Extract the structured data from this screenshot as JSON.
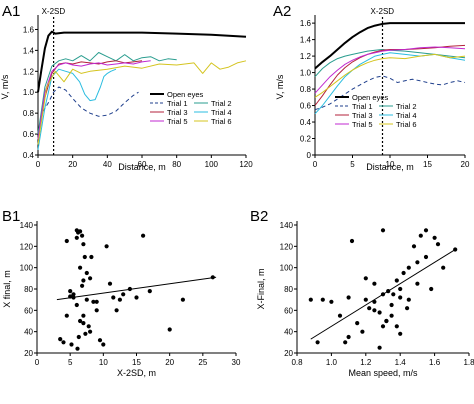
{
  "panels": [
    "A1",
    "A2",
    "B1",
    "B2"
  ],
  "chart_data": [
    {
      "panel": "A1",
      "type": "line",
      "xlabel": "Distance, m",
      "ylabel": "V, m/s",
      "xlim": [
        0,
        120
      ],
      "ylim": [
        0.4,
        1.7
      ],
      "xticks": [
        0,
        20,
        40,
        60,
        80,
        100,
        120
      ],
      "yticks": [
        0.4,
        0.6,
        0.8,
        1.0,
        1.2,
        1.4,
        1.6
      ],
      "xtick_labels": [
        "0",
        "20",
        "40",
        "60",
        "80",
        "100",
        "120"
      ],
      "ytick_labels": [
        "0.4",
        "0.6",
        "0.8",
        "1.0",
        "1.2",
        "1.4",
        "1.6"
      ],
      "annotation": {
        "text": "X-2SD",
        "x": 9
      },
      "legend": {
        "position": "bottom-right",
        "rows": [
          [
            "Open eyes"
          ],
          [
            "Trial 1",
            "Trial 2"
          ],
          [
            "Trial 3",
            "Trial 4"
          ],
          [
            "Trial 5",
            "Trial 6"
          ]
        ]
      },
      "series": [
        {
          "name": "Open eyes",
          "color": "#000000",
          "style": "solid",
          "width": 2,
          "x": [
            0,
            2,
            4,
            6,
            8,
            10,
            15,
            20,
            40,
            60,
            80,
            100,
            110,
            120
          ],
          "y": [
            1.0,
            1.22,
            1.42,
            1.54,
            1.58,
            1.56,
            1.57,
            1.57,
            1.57,
            1.57,
            1.56,
            1.55,
            1.54,
            1.53
          ]
        },
        {
          "name": "Trial 1",
          "color": "#1f3f8c",
          "style": "dashed",
          "width": 1,
          "x": [
            0,
            3,
            6,
            9,
            12,
            16,
            20,
            25,
            30,
            35,
            40,
            45,
            50,
            55,
            58
          ],
          "y": [
            0.62,
            0.82,
            0.9,
            1.0,
            1.05,
            1.02,
            0.94,
            0.85,
            0.8,
            0.77,
            0.78,
            0.82,
            0.9,
            0.97,
            1.0
          ]
        },
        {
          "name": "Trial 2",
          "color": "#2a9d8f",
          "style": "solid",
          "width": 1,
          "x": [
            0,
            4,
            8,
            12,
            16,
            20,
            25,
            30,
            35,
            40,
            45,
            50,
            55,
            60,
            65,
            70,
            75,
            80
          ],
          "y": [
            0.6,
            1.05,
            1.25,
            1.3,
            1.32,
            1.3,
            1.35,
            1.3,
            1.38,
            1.34,
            1.3,
            1.36,
            1.3,
            1.33,
            1.34,
            1.3,
            1.32,
            1.31
          ]
        },
        {
          "name": "Trial 3",
          "color": "#b3223b",
          "style": "solid",
          "width": 1,
          "x": [
            0,
            4,
            8,
            12,
            16,
            20,
            25,
            30,
            35,
            40,
            45,
            50,
            55,
            60
          ],
          "y": [
            0.55,
            0.95,
            1.18,
            1.27,
            1.28,
            1.27,
            1.29,
            1.28,
            1.27,
            1.29,
            1.3,
            1.28,
            1.29,
            1.3
          ]
        },
        {
          "name": "Trial 4",
          "color": "#2bbde0",
          "style": "solid",
          "width": 1,
          "x": [
            0,
            4,
            8,
            12,
            16,
            20,
            24,
            27,
            30,
            33,
            36,
            38,
            40,
            42,
            45
          ],
          "y": [
            0.45,
            0.85,
            1.15,
            1.22,
            1.2,
            1.18,
            1.1,
            0.98,
            0.92,
            0.93,
            1.05,
            1.15,
            1.18,
            1.2,
            1.22
          ]
        },
        {
          "name": "Trial 5",
          "color": "#c02ad1",
          "style": "solid",
          "width": 1,
          "x": [
            0,
            4,
            8,
            12,
            16,
            20,
            25,
            30,
            35,
            40,
            45,
            50,
            55,
            60,
            65
          ],
          "y": [
            0.55,
            1.0,
            1.2,
            1.26,
            1.28,
            1.26,
            1.25,
            1.27,
            1.28,
            1.26,
            1.27,
            1.28,
            1.27,
            1.29,
            1.3
          ]
        },
        {
          "name": "Trial 6",
          "color": "#d4c41f",
          "style": "solid",
          "width": 1,
          "x": [
            0,
            5,
            10,
            15,
            20,
            25,
            30,
            40,
            50,
            60,
            70,
            80,
            90,
            95,
            100,
            105,
            110,
            115,
            120
          ],
          "y": [
            0.5,
            1.05,
            1.2,
            1.1,
            1.22,
            1.18,
            1.2,
            1.22,
            1.25,
            1.23,
            1.27,
            1.26,
            1.28,
            1.18,
            1.28,
            1.22,
            1.24,
            1.28,
            1.3
          ]
        }
      ]
    },
    {
      "panel": "A2",
      "type": "line",
      "xlabel": "Distance, m",
      "ylabel": "V, m/s",
      "xlim": [
        0,
        20
      ],
      "ylim": [
        0,
        1.65
      ],
      "xticks": [
        0,
        5,
        10,
        15,
        20
      ],
      "yticks": [
        0,
        0.2,
        0.4,
        0.6,
        0.8,
        1.0,
        1.2,
        1.4,
        1.6
      ],
      "xtick_labels": [
        "0",
        "5",
        "10",
        "15",
        "20"
      ],
      "ytick_labels": [
        "0",
        "0.2",
        "0.4",
        "0.6",
        "0.8",
        "1.0",
        "1.2",
        "1.4",
        "1.6"
      ],
      "annotation": {
        "text": "X-2SD",
        "x": 9
      },
      "legend": {
        "position": "bottom-left",
        "rows": [
          [
            "Open eyes"
          ],
          [
            "Trial 1",
            "Trial 2"
          ],
          [
            "Trial 3",
            "Trial 4"
          ],
          [
            "Trial 5",
            "Trial 6"
          ]
        ]
      },
      "series": [
        {
          "name": "Open eyes",
          "color": "#000000",
          "style": "solid",
          "width": 2,
          "x": [
            0,
            1,
            2,
            3,
            4,
            5,
            6,
            7,
            8,
            9,
            10,
            12,
            14,
            16,
            18,
            20
          ],
          "y": [
            1.05,
            1.13,
            1.2,
            1.28,
            1.36,
            1.43,
            1.49,
            1.54,
            1.57,
            1.59,
            1.6,
            1.6,
            1.6,
            1.6,
            1.6,
            1.6
          ]
        },
        {
          "name": "Trial 1",
          "color": "#1f3f8c",
          "style": "dashed",
          "width": 1,
          "x": [
            0,
            1,
            2,
            3,
            4,
            5,
            6,
            7,
            8,
            9,
            10,
            11,
            12,
            13,
            14,
            15,
            16,
            17,
            18,
            19,
            20
          ],
          "y": [
            0.55,
            0.58,
            0.62,
            0.68,
            0.74,
            0.8,
            0.85,
            0.9,
            0.94,
            0.96,
            0.93,
            0.88,
            0.9,
            0.92,
            0.9,
            0.88,
            0.86,
            0.85,
            0.88,
            0.9,
            0.88
          ]
        },
        {
          "name": "Trial 2",
          "color": "#2a9d8f",
          "style": "solid",
          "width": 1,
          "x": [
            0,
            1,
            2,
            3,
            4,
            5,
            6,
            7,
            8,
            9,
            10,
            12,
            14,
            16,
            18,
            20
          ],
          "y": [
            0.95,
            1.05,
            1.12,
            1.17,
            1.2,
            1.22,
            1.24,
            1.26,
            1.27,
            1.28,
            1.27,
            1.26,
            1.24,
            1.22,
            1.2,
            1.18
          ]
        },
        {
          "name": "Trial 3",
          "color": "#b3223b",
          "style": "solid",
          "width": 1,
          "x": [
            0,
            1,
            2,
            3,
            4,
            5,
            6,
            7,
            8,
            9,
            10,
            12,
            14,
            16,
            18,
            20
          ],
          "y": [
            0.6,
            0.72,
            0.85,
            0.97,
            1.06,
            1.13,
            1.18,
            1.22,
            1.25,
            1.27,
            1.28,
            1.28,
            1.29,
            1.3,
            1.32,
            1.33
          ]
        },
        {
          "name": "Trial 4",
          "color": "#2bbde0",
          "style": "solid",
          "width": 1,
          "x": [
            0,
            1,
            2,
            3,
            4,
            5,
            6,
            7,
            8,
            9,
            10,
            12,
            14,
            16,
            18,
            20
          ],
          "y": [
            0.5,
            0.6,
            0.72,
            0.84,
            0.95,
            1.03,
            1.1,
            1.15,
            1.2,
            1.22,
            1.24,
            1.22,
            1.2,
            1.22,
            1.18,
            1.15
          ]
        },
        {
          "name": "Trial 5",
          "color": "#c02ad1",
          "style": "solid",
          "width": 1,
          "x": [
            0,
            1,
            2,
            3,
            4,
            5,
            6,
            7,
            8,
            9,
            10,
            12,
            14,
            16,
            18,
            20
          ],
          "y": [
            0.75,
            0.85,
            0.95,
            1.03,
            1.1,
            1.15,
            1.19,
            1.22,
            1.24,
            1.26,
            1.27,
            1.28,
            1.3,
            1.31,
            1.3,
            1.29
          ]
        },
        {
          "name": "Trial 6",
          "color": "#d4c41f",
          "style": "solid",
          "width": 1,
          "x": [
            0,
            1,
            2,
            3,
            4,
            5,
            6,
            7,
            8,
            9,
            10,
            12,
            14,
            16,
            18,
            20
          ],
          "y": [
            0.7,
            0.76,
            0.83,
            0.9,
            0.97,
            1.03,
            1.08,
            1.12,
            1.15,
            1.17,
            1.18,
            1.17,
            1.2,
            1.22,
            1.18,
            1.2
          ]
        }
      ]
    },
    {
      "panel": "B1",
      "type": "scatter",
      "xlabel": "X-2SD, m",
      "ylabel": "X final, m",
      "xlim": [
        0,
        30
      ],
      "ylim": [
        20,
        140
      ],
      "xticks": [
        0,
        5,
        10,
        15,
        20,
        25,
        30
      ],
      "yticks": [
        20,
        40,
        60,
        80,
        100,
        120,
        140
      ],
      "xtick_labels": [
        "0",
        "5",
        "10",
        "15",
        "20",
        "25",
        "30"
      ],
      "ytick_labels": [
        "20",
        "40",
        "60",
        "80",
        "100",
        "120",
        "140"
      ],
      "trendline": {
        "x": [
          3,
          27
        ],
        "y": [
          70,
          91
        ]
      },
      "x": [
        3.5,
        4.0,
        4.5,
        5.0,
        5.5,
        5.0,
        6.0,
        6.2,
        6.5,
        6.0,
        6.8,
        7.0,
        7.2,
        6.5,
        7.5,
        8.0,
        7.0,
        6.8,
        5.5,
        6.0,
        7.5,
        8.5,
        9.0,
        7.0,
        6.5,
        7.0,
        7.8,
        8.0,
        6.3,
        9.5,
        10.0,
        10.5,
        11.0,
        11.5,
        9.0,
        12.0,
        12.5,
        13.0,
        14.0,
        15.0,
        16.0,
        17.0,
        20.0,
        22.0,
        26.5,
        4.5,
        5.2,
        6.1,
        7.3,
        8.2
      ],
      "y": [
        33,
        30,
        125,
        78,
        75,
        73,
        135,
        133,
        134,
        128,
        130,
        122,
        110,
        100,
        95,
        90,
        88,
        83,
        72,
        65,
        70,
        68,
        60,
        55,
        50,
        48,
        45,
        40,
        35,
        32,
        28,
        120,
        85,
        72,
        68,
        60,
        70,
        75,
        80,
        72,
        130,
        78,
        42,
        70,
        91,
        55,
        28,
        24,
        38,
        110
      ]
    },
    {
      "panel": "B2",
      "type": "scatter",
      "xlabel": "Mean speed, m/s",
      "ylabel": "X-Final, m",
      "xlim": [
        0.8,
        1.8
      ],
      "ylim": [
        20,
        140
      ],
      "xticks": [
        0.8,
        1.0,
        1.2,
        1.4,
        1.6,
        1.8
      ],
      "yticks": [
        20,
        40,
        60,
        80,
        100,
        120,
        140
      ],
      "xtick_labels": [
        "0.8",
        "1.0",
        "1.2",
        "1.4",
        "1.6",
        "1.8"
      ],
      "ytick_labels": [
        "20",
        "40",
        "60",
        "80",
        "100",
        "120",
        "140"
      ],
      "trendline": {
        "x": [
          0.88,
          1.72
        ],
        "y": [
          33,
          117
        ]
      },
      "x": [
        0.88,
        0.92,
        0.95,
        1.0,
        1.05,
        1.08,
        1.1,
        1.12,
        1.15,
        1.18,
        1.2,
        1.22,
        1.25,
        1.25,
        1.28,
        1.3,
        1.3,
        1.32,
        1.33,
        1.35,
        1.35,
        1.38,
        1.4,
        1.4,
        1.42,
        1.45,
        1.45,
        1.48,
        1.5,
        1.5,
        1.52,
        1.55,
        1.55,
        1.58,
        1.6,
        1.62,
        1.65,
        1.72,
        1.25,
        1.28,
        1.2,
        1.3,
        1.36,
        1.4,
        1.44,
        1.1,
        1.32,
        1.38
      ],
      "y": [
        70,
        30,
        70,
        68,
        55,
        30,
        35,
        125,
        48,
        40,
        70,
        62,
        85,
        60,
        58,
        75,
        45,
        50,
        78,
        65,
        55,
        45,
        80,
        72,
        95,
        70,
        100,
        120,
        85,
        105,
        130,
        135,
        110,
        80,
        128,
        122,
        100,
        117,
        68,
        25,
        90,
        135,
        75,
        38,
        62,
        72,
        50,
        88
      ]
    }
  ]
}
